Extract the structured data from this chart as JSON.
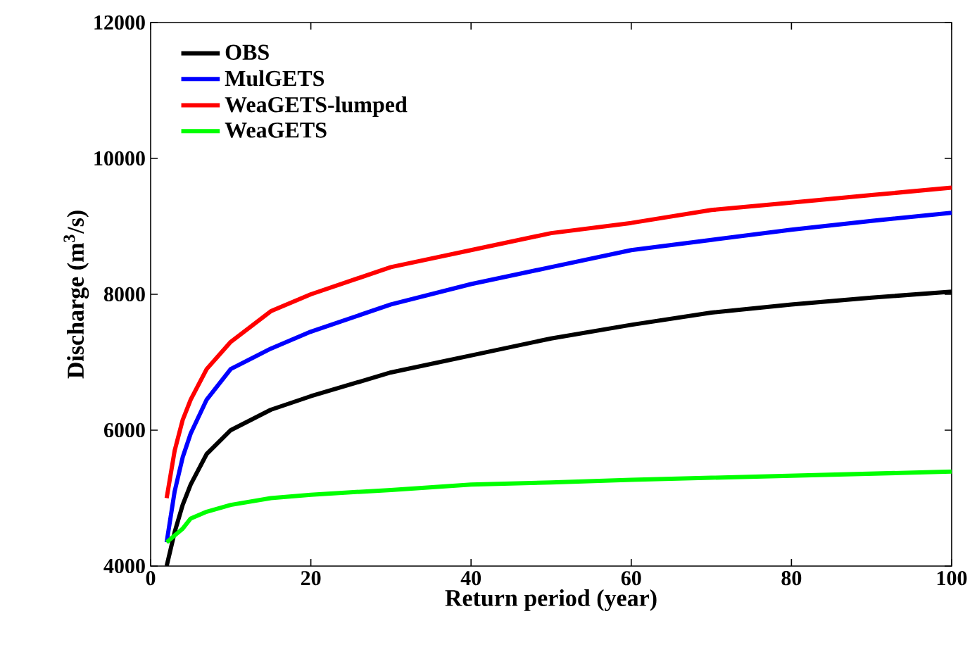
{
  "chart_data": {
    "type": "line",
    "xlabel": "Return period (year)",
    "ylabel": "Discharge (m$^{3}$/s)",
    "x": [
      2,
      3,
      4,
      5,
      7,
      10,
      15,
      20,
      30,
      40,
      50,
      60,
      70,
      80,
      90,
      100
    ],
    "series": [
      {
        "name": "OBS",
        "color": "#000000",
        "values": [
          4000,
          4500,
          4900,
          5200,
          5650,
          6000,
          6300,
          6500,
          6850,
          7100,
          7350,
          7550,
          7730,
          7850,
          7950,
          8040
        ]
      },
      {
        "name": "MulGETS",
        "color": "#0000ff",
        "values": [
          4350,
          5100,
          5600,
          5950,
          6450,
          6900,
          7200,
          7450,
          7850,
          8150,
          8400,
          8650,
          8800,
          8950,
          9080,
          9200
        ]
      },
      {
        "name": "WeaGETS-lumped",
        "color": "#ff0000",
        "values": [
          5000,
          5700,
          6150,
          6450,
          6900,
          7300,
          7750,
          8000,
          8400,
          8650,
          8900,
          9050,
          9240,
          9350,
          9460,
          9570
        ]
      },
      {
        "name": "WeaGETS",
        "color": "#00ff00",
        "values": [
          4350,
          4450,
          4550,
          4700,
          4800,
          4900,
          5000,
          5050,
          5120,
          5200,
          5230,
          5270,
          5300,
          5330,
          5360,
          5390
        ]
      }
    ],
    "xlim": [
      0,
      100
    ],
    "ylim": [
      4000,
      12000
    ],
    "xticks": [
      0,
      20,
      40,
      60,
      80,
      100
    ],
    "yticks": [
      4000,
      6000,
      8000,
      10000,
      12000
    ],
    "grid": false,
    "legend": "top left",
    "marker": "none",
    "line_style": "solid"
  }
}
